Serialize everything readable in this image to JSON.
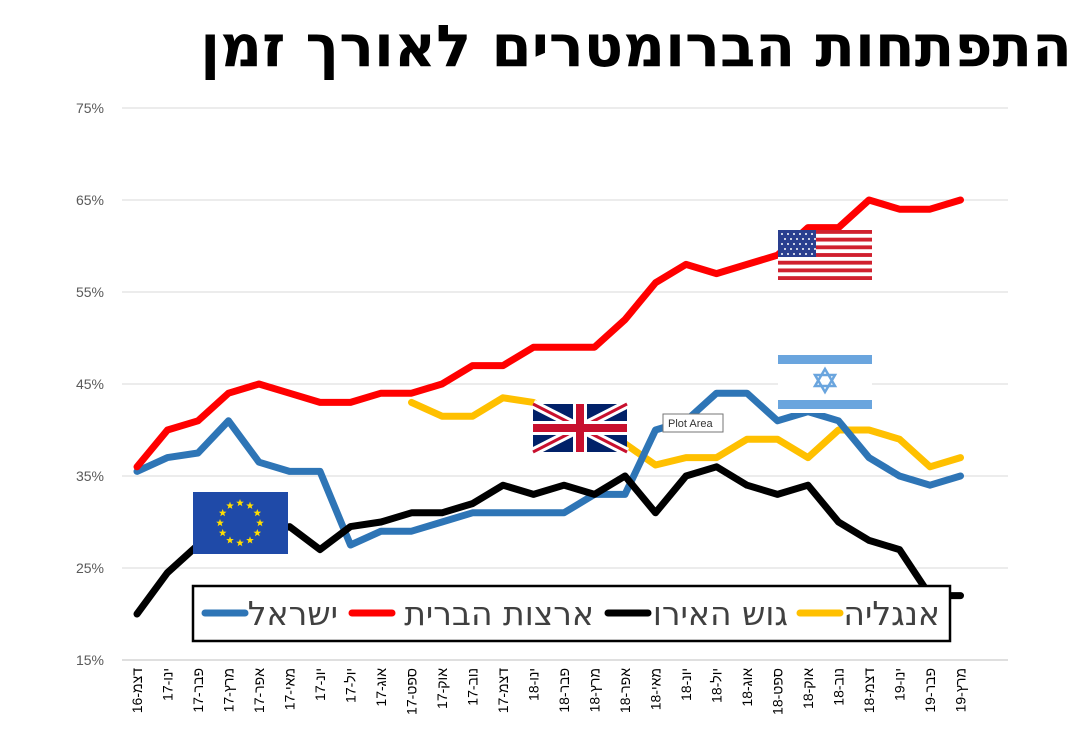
{
  "colors": {
    "israel": "#2e75b6",
    "usa": "#ff0000",
    "eurozone": "#000000",
    "england": "#ffc000",
    "grid": "#d9d9d9"
  },
  "tooltip": "Plot Area",
  "chart_data": {
    "type": "line",
    "title": "התפתחות הברומטרים לאורך זמן",
    "ylim": [
      0.15,
      0.75
    ],
    "yticks": [
      0.15,
      0.25,
      0.35,
      0.45,
      0.55,
      0.65,
      0.75
    ],
    "ytick_labels": [
      "15%",
      "25%",
      "35%",
      "45%",
      "55%",
      "65%",
      "75%"
    ],
    "grid": true,
    "legend_position": "bottom",
    "categories": [
      "דצמ-16",
      "ינו-17",
      "פבר-17",
      "מרץ-17",
      "אפר-17",
      "מאי-17",
      "יונ-17",
      "יול-17",
      "אוג-17",
      "ספט-17",
      "אוק-17",
      "נוב-17",
      "דצמ-17",
      "ינו-18",
      "פבר-18",
      "מרץ-18",
      "אפר-18",
      "מאי-18",
      "יונ-18",
      "יול-18",
      "אוג-18",
      "ספט-18",
      "אוק-18",
      "נוב-18",
      "דצמ-18",
      "ינו-19",
      "פבר-19",
      "מרץ-19"
    ],
    "series": [
      {
        "key": "israel",
        "name": "ישראל",
        "values": [
          0.355,
          0.37,
          0.375,
          0.41,
          0.365,
          0.355,
          0.355,
          0.275,
          0.29,
          0.29,
          0.3,
          0.31,
          0.31,
          0.31,
          0.31,
          0.33,
          0.33,
          0.4,
          0.41,
          0.44,
          0.44,
          0.41,
          0.42,
          0.41,
          0.37,
          0.35,
          0.34,
          0.35
        ]
      },
      {
        "key": "usa",
        "name": "ארצות הברית",
        "values": [
          0.36,
          0.4,
          0.41,
          0.44,
          0.45,
          0.44,
          0.43,
          0.43,
          0.44,
          0.44,
          0.45,
          0.47,
          0.47,
          0.49,
          0.49,
          0.49,
          0.52,
          0.56,
          0.58,
          0.57,
          0.58,
          0.59,
          0.62,
          0.62,
          0.65,
          0.64,
          0.64,
          0.65
        ]
      },
      {
        "key": "eurozone",
        "name": "גוש האירו",
        "values": [
          0.2,
          0.245,
          0.275,
          0.28,
          0.285,
          0.295,
          0.27,
          0.295,
          0.3,
          0.31,
          0.31,
          0.32,
          0.34,
          0.33,
          0.34,
          0.33,
          0.35,
          0.31,
          0.35,
          0.36,
          0.34,
          0.33,
          0.34,
          0.3,
          0.28,
          0.27,
          0.22,
          0.22
        ]
      },
      {
        "key": "england",
        "name": "אנגליה",
        "values": [
          null,
          null,
          null,
          null,
          null,
          null,
          null,
          null,
          null,
          0.43,
          0.415,
          0.415,
          0.435,
          0.43,
          0.395,
          0.39,
          0.385,
          0.362,
          0.37,
          0.37,
          0.39,
          0.39,
          0.37,
          0.4,
          0.4,
          0.39,
          0.36,
          0.37
        ]
      }
    ]
  }
}
